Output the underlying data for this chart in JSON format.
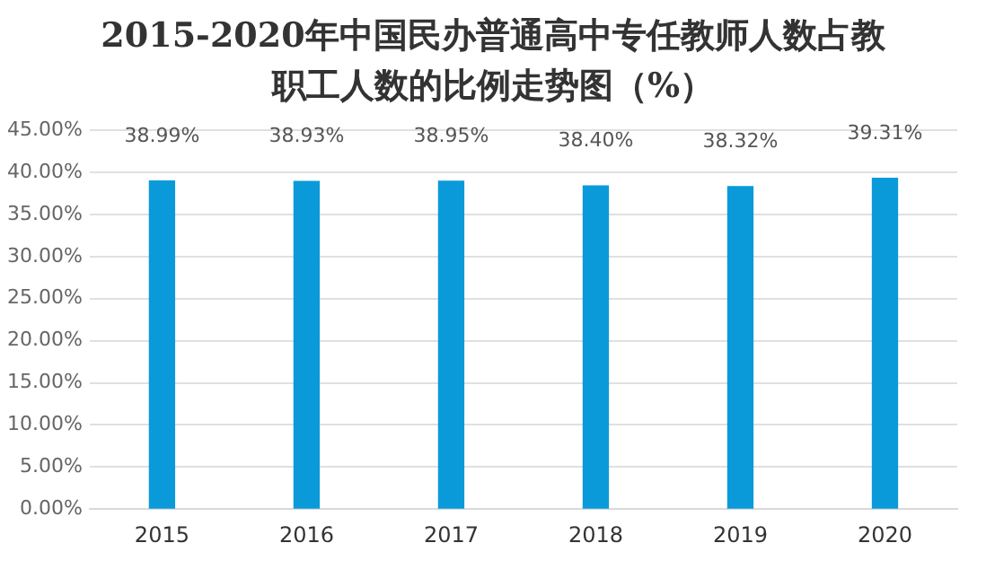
{
  "chart_data": {
    "type": "bar",
    "title": [
      "2015-2020年中国民办普通高中专任教师人数占教",
      "职工人数的比例走势图（%）"
    ],
    "categories": [
      "2015",
      "2016",
      "2017",
      "2018",
      "2019",
      "2020"
    ],
    "values": [
      38.99,
      38.93,
      38.95,
      38.4,
      38.32,
      39.31
    ],
    "value_labels": [
      "38.99%",
      "38.93%",
      "38.95%",
      "38.40%",
      "38.32%",
      "39.31%"
    ],
    "color": "#0b9ad9",
    "ylim": [
      0,
      45
    ],
    "yticks": [
      {
        "value": 0,
        "label": "0.00%"
      },
      {
        "value": 5,
        "label": "5.00%"
      },
      {
        "value": 10,
        "label": "10.00%"
      },
      {
        "value": 15,
        "label": "15.00%"
      },
      {
        "value": 20,
        "label": "20.00%"
      },
      {
        "value": 25,
        "label": "25.00%"
      },
      {
        "value": 30,
        "label": "30.00%"
      },
      {
        "value": 35,
        "label": "35.00%"
      },
      {
        "value": 40,
        "label": "40.00%"
      },
      {
        "value": 45,
        "label": "45.00%"
      }
    ],
    "grid": "y"
  }
}
